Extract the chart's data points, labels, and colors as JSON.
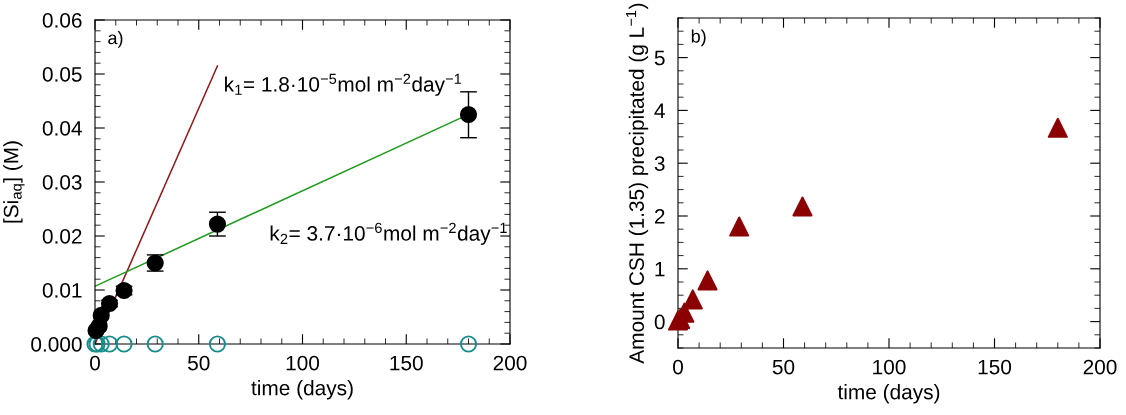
{
  "chart_data": [
    {
      "type": "scatter",
      "xlabel": "time (days)",
      "ylabel": "[Si$_{aq}$] (M)",
      "xlim": [
        0,
        200
      ],
      "xticks": [
        0,
        50,
        100,
        150,
        200
      ],
      "ylim": [
        0,
        0.06
      ],
      "yticks": [
        {
          "value": 0,
          "label": "0.000"
        },
        {
          "value": 0.01,
          "label": "0.01"
        },
        {
          "value": 0.02,
          "label": "0.02"
        },
        {
          "value": 0.03,
          "label": "0.03"
        },
        {
          "value": 0.04,
          "label": "0.04"
        },
        {
          "value": 0.05,
          "label": "0.05"
        },
        {
          "value": 0.06,
          "label": "0.06"
        }
      ],
      "grid": false,
      "legend": false,
      "series": [
        {
          "type": "line",
          "color": "#8b1a1a",
          "x": [
            0,
            59
          ],
          "values": [
            0,
            0.0515
          ],
          "marker": "none",
          "line_style": "solid"
        },
        {
          "type": "line",
          "color": "#1f9a1f",
          "x": [
            0,
            180
          ],
          "values": [
            0.0107,
            0.0425
          ],
          "marker": "none",
          "line_style": "solid"
        },
        {
          "color": "#1a8c8c",
          "marker": "circle",
          "x": [
            0,
            1,
            3,
            7,
            14,
            29,
            59,
            180
          ],
          "values": [
            0,
            0,
            0,
            0,
            0,
            0,
            0,
            0
          ]
        },
        {
          "color": "#000000",
          "marker": "circle",
          "x": [
            0.5,
            2,
            3,
            7,
            14,
            29,
            59,
            180
          ],
          "values": [
            0.0025,
            0.0033,
            0.0053,
            0.0075,
            0.0099,
            0.015,
            0.0222,
            0.0425
          ],
          "errors": [
            null,
            null,
            null,
            0.0006,
            0.0008,
            0.0015,
            0.0022,
            [
              0.0382,
              0.0467
            ]
          ]
        }
      ],
      "annotations": [
        "a)",
        "k$_{1}$= 1.8·10$^{−5}$mol m$^{−2}$day$^{−1}$",
        "k$_{2}$= 3.7·10$^{−6}$mol m$^{−2}$day$^{−1}$"
      ]
    },
    {
      "type": "scatter",
      "xlabel": "time (days)",
      "ylabel": "Amount CSH (1.35) precipitated (g L$^{−1}$)",
      "xlim": [
        0,
        200
      ],
      "xticks": [
        0,
        50,
        100,
        150,
        200
      ],
      "ylim": [
        -0.5,
        5.75
      ],
      "yticks": [
        0,
        1,
        2,
        3,
        4,
        5
      ],
      "grid": false,
      "legend": false,
      "series": [
        {
          "color": "#8b0000",
          "marker": "triangle",
          "x": [
            0,
            1,
            3,
            7,
            14,
            29,
            59,
            180
          ],
          "values": [
            0.02,
            0.05,
            0.17,
            0.42,
            0.78,
            1.8,
            2.18,
            3.67
          ]
        }
      ],
      "annotations": [
        "b)"
      ]
    }
  ]
}
